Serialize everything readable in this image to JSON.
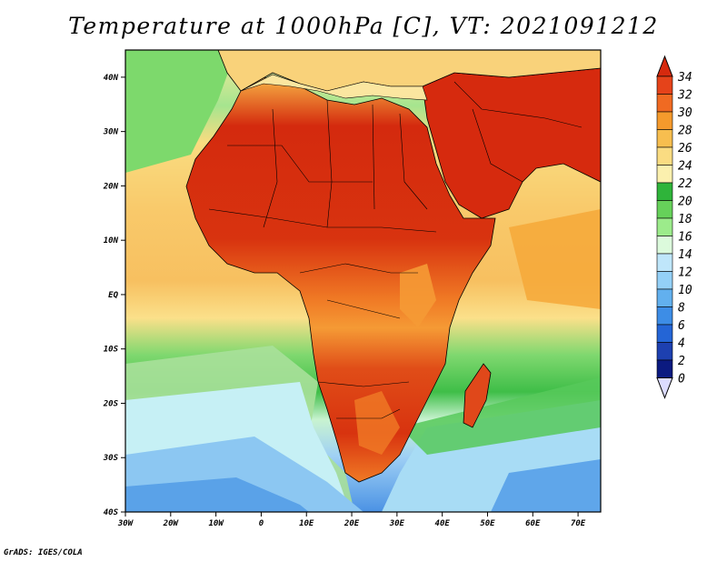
{
  "title": "Temperature at 1000hPa [C], VT: 2021091212",
  "credit": "GrADS: IGES/COLA",
  "map": {
    "projection": "latlon",
    "lon_range": [
      -30,
      75
    ],
    "lat_range": [
      -40,
      45
    ],
    "lat_ticks": [
      {
        "lat": 40,
        "label": "40N"
      },
      {
        "lat": 30,
        "label": "30N"
      },
      {
        "lat": 20,
        "label": "20N"
      },
      {
        "lat": 10,
        "label": "10N"
      },
      {
        "lat": 0,
        "label": "EQ"
      },
      {
        "lat": -10,
        "label": "10S"
      },
      {
        "lat": -20,
        "label": "20S"
      },
      {
        "lat": -30,
        "label": "30S"
      },
      {
        "lat": -40,
        "label": "40S"
      }
    ],
    "lon_ticks": [
      {
        "lon": -30,
        "label": "30W"
      },
      {
        "lon": -20,
        "label": "20W"
      },
      {
        "lon": -10,
        "label": "10W"
      },
      {
        "lon": 0,
        "label": "0"
      },
      {
        "lon": 10,
        "label": "10E"
      },
      {
        "lon": 20,
        "label": "20E"
      },
      {
        "lon": 30,
        "label": "30E"
      },
      {
        "lon": 40,
        "label": "40E"
      },
      {
        "lon": 50,
        "label": "50E"
      },
      {
        "lon": 60,
        "label": "60E"
      },
      {
        "lon": 70,
        "label": "70E"
      }
    ]
  },
  "colorbar": {
    "labels": [
      "34",
      "32",
      "30",
      "28",
      "26",
      "24",
      "22",
      "20",
      "18",
      "16",
      "14",
      "12",
      "10",
      "8",
      "6",
      "4",
      "2",
      "0"
    ],
    "colors": [
      "#d62a0e",
      "#e5431a",
      "#f06a22",
      "#f59a2c",
      "#f7be4f",
      "#fadc82",
      "#fbf0ae",
      "#2fb43a",
      "#66d15a",
      "#9ceb8b",
      "#dcfadc",
      "#bfe6fa",
      "#94d0f7",
      "#62b0ee",
      "#3d8de6",
      "#2465d6",
      "#1d40b0",
      "#0b1a80",
      "#dcdcff"
    ]
  },
  "colors": {
    "ocean_cold": "#9fd0f5",
    "ocean_mid": "#8fe08a",
    "ocean_warm": "#f9c56a",
    "land_hot": "#d42a0e",
    "land_warm": "#f07a25",
    "border": "#000000"
  }
}
